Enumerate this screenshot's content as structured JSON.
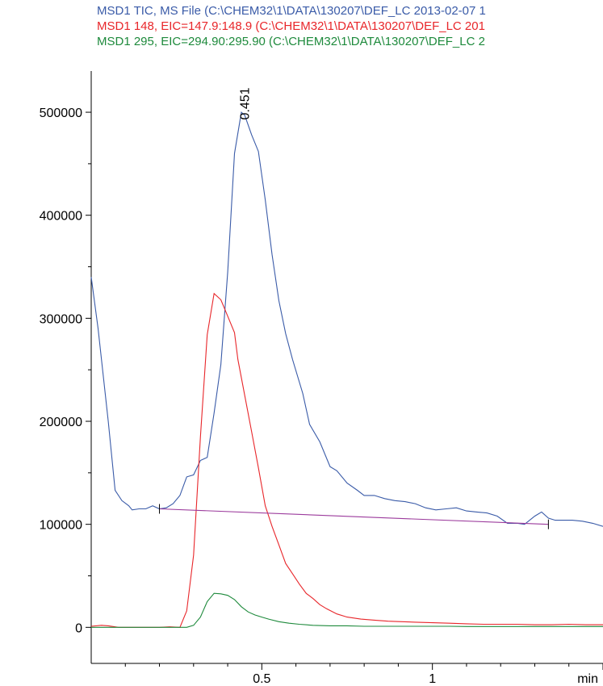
{
  "legend": [
    {
      "text": "MSD1 TIC, MS File (C:\\CHEM32\\1\\DATA\\130207\\DEF_LC 2013-02-07 1",
      "color": "#3a5ba8"
    },
    {
      "text": "MSD1 148, EIC=147.9:148.9 (C:\\CHEM32\\1\\DATA\\130207\\DEF_LC 201",
      "color": "#e8262a"
    },
    {
      "text": "MSD1 295, EIC=294.90:295.90 (C:\\CHEM32\\1\\DATA\\130207\\DEF_LC 2",
      "color": "#1e8a3c"
    }
  ],
  "chart_data": {
    "type": "line",
    "x_unit": "min",
    "xlim": [
      0.0,
      1.5
    ],
    "ylim": [
      -35000,
      540000
    ],
    "x_ticks": [
      0.5,
      1
    ],
    "y_ticks": [
      0,
      100000,
      200000,
      300000,
      400000,
      500000
    ],
    "peak_annotation": {
      "text": "0.451",
      "x": 0.451,
      "y": 495000
    },
    "series": [
      {
        "name": "MSD1 TIC",
        "color": "#3a5ba8",
        "x": [
          0.0,
          0.02,
          0.05,
          0.07,
          0.09,
          0.11,
          0.12,
          0.14,
          0.16,
          0.18,
          0.2,
          0.22,
          0.24,
          0.26,
          0.28,
          0.3,
          0.32,
          0.34,
          0.36,
          0.38,
          0.4,
          0.42,
          0.44,
          0.45,
          0.47,
          0.49,
          0.51,
          0.53,
          0.55,
          0.57,
          0.59,
          0.62,
          0.64,
          0.67,
          0.7,
          0.72,
          0.75,
          0.78,
          0.8,
          0.83,
          0.86,
          0.89,
          0.92,
          0.95,
          0.98,
          1.01,
          1.04,
          1.07,
          1.1,
          1.13,
          1.16,
          1.19,
          1.22,
          1.25,
          1.27,
          1.3,
          1.32,
          1.34,
          1.36,
          1.38,
          1.41,
          1.44,
          1.47,
          1.5
        ],
        "y": [
          340000,
          290000,
          200000,
          133000,
          123000,
          118000,
          114000,
          115000,
          115000,
          118000,
          115000,
          116000,
          120000,
          128000,
          146000,
          148000,
          162000,
          165000,
          208000,
          255000,
          345000,
          460000,
          500000,
          497000,
          478000,
          462000,
          415000,
          362000,
          317000,
          285000,
          260000,
          227000,
          197000,
          180000,
          156000,
          152000,
          140000,
          133000,
          128000,
          128000,
          125000,
          123000,
          122000,
          120000,
          116000,
          114000,
          115000,
          116000,
          113000,
          112000,
          111000,
          108000,
          101000,
          101000,
          100000,
          108000,
          112000,
          106000,
          104000,
          104000,
          104000,
          103000,
          101000,
          98000
        ]
      },
      {
        "name": "MSD1 148",
        "color": "#e8262a",
        "x": [
          0.0,
          0.03,
          0.05,
          0.08,
          0.11,
          0.14,
          0.17,
          0.2,
          0.23,
          0.26,
          0.28,
          0.3,
          0.32,
          0.34,
          0.36,
          0.38,
          0.4,
          0.42,
          0.43,
          0.45,
          0.47,
          0.49,
          0.51,
          0.53,
          0.55,
          0.57,
          0.59,
          0.61,
          0.63,
          0.65,
          0.67,
          0.69,
          0.72,
          0.75,
          0.79,
          0.83,
          0.87,
          0.91,
          0.95,
          1.0,
          1.05,
          1.1,
          1.15,
          1.2,
          1.25,
          1.3,
          1.35,
          1.4,
          1.45,
          1.5
        ],
        "y": [
          1000,
          2000,
          1500,
          0,
          0,
          0,
          0,
          0,
          500,
          0,
          16000,
          70000,
          185000,
          284000,
          324000,
          318000,
          302000,
          286000,
          260000,
          225000,
          190000,
          155000,
          118000,
          98000,
          80000,
          62000,
          52000,
          42000,
          33000,
          28000,
          22000,
          18000,
          13000,
          10000,
          8000,
          7000,
          6000,
          5500,
          5000,
          4500,
          4000,
          3500,
          3000,
          3000,
          3000,
          2500,
          2500,
          3000,
          2500,
          2500
        ]
      },
      {
        "name": "MSD1 295",
        "color": "#1e8a3c",
        "x": [
          0.0,
          0.05,
          0.1,
          0.15,
          0.2,
          0.25,
          0.28,
          0.3,
          0.32,
          0.34,
          0.36,
          0.38,
          0.4,
          0.42,
          0.44,
          0.46,
          0.48,
          0.5,
          0.52,
          0.55,
          0.58,
          0.61,
          0.65,
          0.7,
          0.75,
          0.8,
          0.85,
          0.9,
          0.95,
          1.0,
          1.05,
          1.1,
          1.15,
          1.2,
          1.25,
          1.3,
          1.35,
          1.4,
          1.45,
          1.5
        ],
        "y": [
          0,
          0,
          0,
          0,
          0,
          0,
          0,
          2000,
          10000,
          25000,
          33000,
          32500,
          31000,
          27000,
          20000,
          15000,
          12000,
          10000,
          8000,
          5500,
          4000,
          3000,
          2000,
          1500,
          1500,
          1000,
          1000,
          1000,
          1000,
          1000,
          1000,
          800,
          800,
          800,
          800,
          800,
          800,
          800,
          800,
          800
        ]
      },
      {
        "name": "",
        "color": "#9b3a9c",
        "x": [
          0.2,
          1.34
        ],
        "y": [
          115000,
          100000
        ]
      }
    ]
  }
}
